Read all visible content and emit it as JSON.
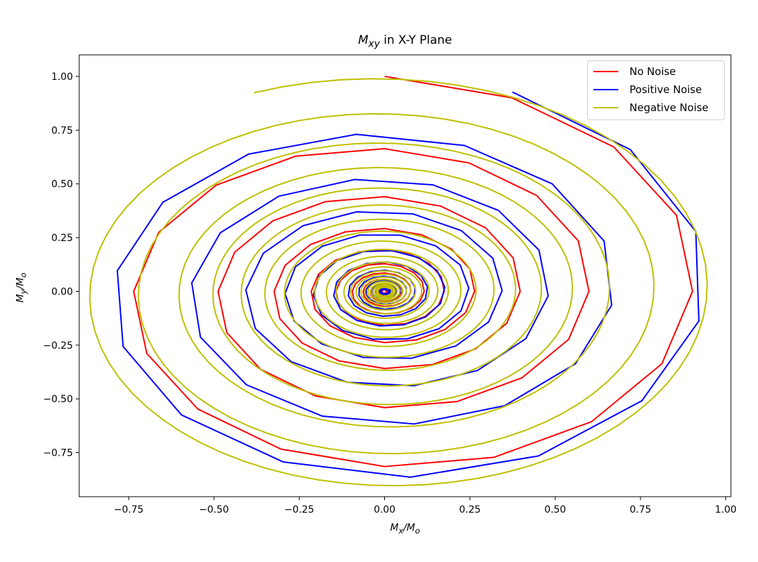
{
  "chart_data": {
    "type": "line",
    "title_main": "M",
    "title_sub": "xy",
    "title_rest": " in X-Y Plane",
    "xlabel_main": "M",
    "xlabel_sub": "x",
    "xlabel_mid": "/M",
    "xlabel_sub2": "o",
    "ylabel_main": "M",
    "ylabel_sub": "y",
    "ylabel_mid": "/M",
    "ylabel_sub2": "o",
    "xlim": [
      -0.895,
      1.015
    ],
    "ylim": [
      -0.955,
      1.1
    ],
    "xticks": [
      -0.75,
      -0.5,
      -0.25,
      0.0,
      0.25,
      0.5,
      0.75,
      1.0
    ],
    "xtick_labels": [
      "−0.75",
      "−0.50",
      "−0.25",
      "0.00",
      "0.25",
      "0.50",
      "0.75",
      "1.00"
    ],
    "yticks": [
      -0.75,
      -0.5,
      -0.25,
      0.0,
      0.25,
      0.5,
      0.75,
      1.0
    ],
    "ytick_labels": [
      "−0.75",
      "−0.50",
      "−0.25",
      "0.00",
      "0.25",
      "0.50",
      "0.75",
      "1.00"
    ],
    "grid": false,
    "legend_position": "top-right",
    "spirals": [
      {
        "name": "No Noise",
        "color": "#ff0000",
        "start_angle_deg": 90,
        "step_deg": 22.5,
        "decay": 0.9747,
        "clockwise": true,
        "points": 200
      },
      {
        "name": "Positive Noise",
        "color": "#0000ff",
        "start_angle_deg": 68,
        "step_deg": 25.5,
        "decay": 0.9766,
        "clockwise": true,
        "points": 200
      },
      {
        "name": "Negative Noise",
        "color": "#bfbf00",
        "start_angle_deg": 112.5,
        "step_deg": 5,
        "decay": 0.9975,
        "clockwise": true,
        "points": 1600
      }
    ]
  }
}
